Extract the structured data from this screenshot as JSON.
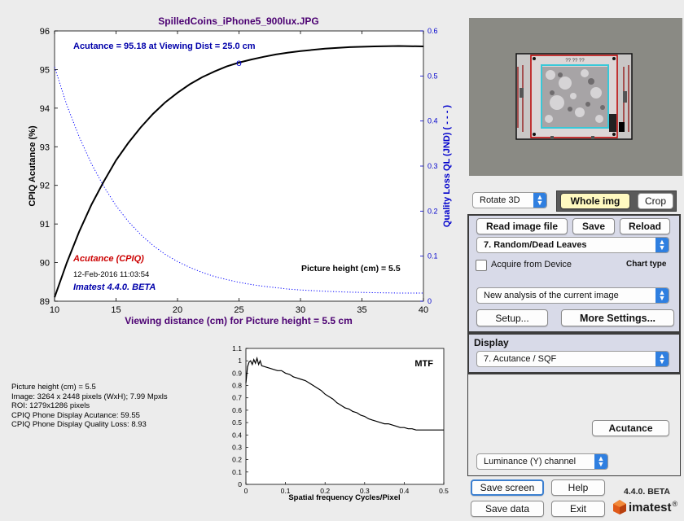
{
  "main_plot": {
    "title": "SpilledCoins_iPhone5_900lux.JPG",
    "xlabel": "Viewing distance (cm) for Picture height = 5.5 cm",
    "ylabel_left": "CPIQ Acutance (%)",
    "ylabel_right": "Quality Loss QL (JND) ( - - - )",
    "acutance_note": "Acutance = 95.18 at Viewing Dist = 25.0 cm",
    "legend_cpiq": "Acutance (CPIQ)",
    "timestamp": "12-Feb-2016 11:03:54",
    "version_label": "Imatest 4.4.0. BETA",
    "picture_height_note": "Picture height (cm) = 5.5",
    "marker": "o"
  },
  "chart_data": [
    {
      "type": "line",
      "title": "SpilledCoins_iPhone5_900lux.JPG",
      "xlabel": "Viewing distance (cm) for Picture height = 5.5 cm",
      "ylabel": "CPIQ Acutance (%)",
      "ylabel_right": "Quality Loss QL (JND) ( - - - )",
      "xlim": [
        10,
        40
      ],
      "ylim": [
        89,
        96
      ],
      "ylim_right": [
        0,
        0.6
      ],
      "xticks": [
        10,
        15,
        20,
        25,
        30,
        35,
        40
      ],
      "yticks": [
        89,
        90,
        91,
        92,
        93,
        94,
        95,
        96
      ],
      "yticks_right": [
        0,
        0.1,
        0.2,
        0.3,
        0.4,
        0.5,
        0.6
      ],
      "grid": false,
      "series": [
        {
          "name": "Acutance (CPIQ)",
          "axis": "left",
          "style": "solid",
          "color": "#000000",
          "x": [
            10,
            11,
            12,
            13,
            14,
            15,
            16,
            17,
            18,
            19,
            20,
            21,
            22,
            23,
            24,
            25,
            26,
            27,
            28,
            29,
            30,
            32,
            34,
            36,
            38,
            40
          ],
          "y": [
            89.1,
            90.0,
            90.8,
            91.5,
            92.1,
            92.65,
            93.1,
            93.5,
            93.85,
            94.15,
            94.4,
            94.62,
            94.8,
            94.95,
            95.08,
            95.18,
            95.26,
            95.33,
            95.39,
            95.44,
            95.48,
            95.54,
            95.58,
            95.6,
            95.61,
            95.6
          ]
        },
        {
          "name": "",
          "axis": "right",
          "style": "dotted",
          "color": "#0000ff",
          "x": [
            10,
            11,
            12,
            13,
            14,
            15,
            16,
            17,
            18,
            19,
            20,
            21,
            22,
            23,
            24,
            25,
            26,
            27,
            28,
            29,
            30,
            32,
            34,
            36,
            38,
            40
          ],
          "y": [
            0.52,
            0.435,
            0.365,
            0.305,
            0.255,
            0.212,
            0.177,
            0.148,
            0.124,
            0.104,
            0.088,
            0.075,
            0.064,
            0.055,
            0.048,
            0.042,
            0.037,
            0.033,
            0.03,
            0.027,
            0.025,
            0.022,
            0.02,
            0.019,
            0.018,
            0.018
          ]
        }
      ],
      "annotations": [
        {
          "x": 25,
          "y": 95.18,
          "label": "o"
        }
      ]
    },
    {
      "type": "line",
      "title": "MTF",
      "xlabel": "Spatial frequency Cycles/Pixel",
      "ylabel": "",
      "xlim": [
        0,
        0.5
      ],
      "ylim": [
        0,
        1.1
      ],
      "xticks": [
        0,
        0.1,
        0.2,
        0.3,
        0.4,
        0.5
      ],
      "yticks": [
        0,
        0.1,
        0.2,
        0.3,
        0.4,
        0.5,
        0.6,
        0.7,
        0.8,
        0.9,
        1,
        1.1
      ],
      "grid": false,
      "series": [
        {
          "name": "",
          "color": "#000000",
          "x": [
            0,
            0.004,
            0.008,
            0.012,
            0.016,
            0.02,
            0.024,
            0.028,
            0.032,
            0.036,
            0.04,
            0.05,
            0.06,
            0.07,
            0.08,
            0.09,
            0.1,
            0.11,
            0.12,
            0.13,
            0.14,
            0.15,
            0.16,
            0.17,
            0.18,
            0.19,
            0.2,
            0.21,
            0.22,
            0.23,
            0.24,
            0.25,
            0.26,
            0.27,
            0.28,
            0.29,
            0.3,
            0.31,
            0.32,
            0.33,
            0.34,
            0.35,
            0.36,
            0.37,
            0.38,
            0.39,
            0.4,
            0.41,
            0.42,
            0.43,
            0.44,
            0.45,
            0.46,
            0.47,
            0.48,
            0.49,
            0.5
          ],
          "y": [
            0.82,
            0.95,
            0.99,
            1.0,
            0.97,
            1.01,
            0.98,
            1.02,
            0.97,
            1.0,
            0.96,
            0.95,
            0.94,
            0.93,
            0.92,
            0.92,
            0.9,
            0.89,
            0.87,
            0.86,
            0.85,
            0.84,
            0.82,
            0.8,
            0.78,
            0.76,
            0.73,
            0.71,
            0.69,
            0.66,
            0.64,
            0.62,
            0.61,
            0.59,
            0.58,
            0.56,
            0.55,
            0.53,
            0.52,
            0.51,
            0.5,
            0.49,
            0.49,
            0.48,
            0.47,
            0.46,
            0.46,
            0.45,
            0.45,
            0.44,
            0.44,
            0.44,
            0.44,
            0.44,
            0.44,
            0.44,
            0.44
          ]
        }
      ]
    }
  ],
  "info": {
    "lines": [
      "Picture height (cm) = 5.5",
      "Image: 3264 x 2448 pixels (WxH); 7.99 Mpxls",
      "ROI: 1279x1286 pixels",
      "CPIQ Phone Display Acutance: 59.55",
      "CPIQ Phone Display Quality Loss: 8.93"
    ]
  },
  "controls": {
    "rotate_select": "Rotate 3D",
    "whole_img": "Whole img",
    "crop": "Crop",
    "read_image": "Read image file",
    "save": "Save",
    "reload": "Reload",
    "chart_select": "7. Random/Dead Leaves",
    "acquire_label": "Acquire from Device",
    "chart_type_label": "Chart type",
    "analysis_select": "New analysis of the current image",
    "setup": "Setup...",
    "more_settings": "More Settings...",
    "display_title": "Display",
    "display_select": "7. Acutance / SQF",
    "acutance_button": "Acutance",
    "channel_select": "Luminance (Y) channel",
    "save_screen": "Save screen",
    "help": "Help",
    "save_data": "Save data",
    "exit": "Exit",
    "version": "4.4.0. BETA",
    "logo_text": "imatest",
    "logo_reg": "®"
  },
  "thumbnail": {
    "chart_label": "?? ?? ??"
  },
  "colors": {
    "title": "#4b0072",
    "left_axis": "#000000",
    "right_axis": "#0000cc",
    "legend_cpiq": "#cc0000",
    "version_label": "#0000aa",
    "selected_button": "#fff9c0",
    "settings_panel": "#d8dae8",
    "select_arrow": "#2f7fe0"
  }
}
